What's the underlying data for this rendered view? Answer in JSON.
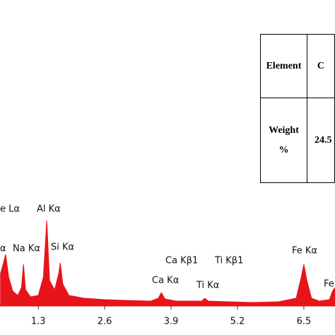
{
  "chart_data": {
    "type": "area",
    "x": [
      0.56,
      0.6,
      0.66,
      0.72,
      0.8,
      0.9,
      0.97,
      1.01,
      1.05,
      1.15,
      1.3,
      1.4,
      1.466,
      1.52,
      1.62,
      1.7,
      1.73,
      1.78,
      1.9,
      2.2,
      2.6,
      3.0,
      3.5,
      3.65,
      3.71,
      3.78,
      4.0,
      4.5,
      4.56,
      4.63,
      5.0,
      5.5,
      6.0,
      6.35,
      6.45,
      6.5,
      6.56,
      6.65,
      6.8,
      7.0,
      7.06,
      7.11
    ],
    "values": [
      45,
      55,
      72,
      40,
      20,
      14,
      25,
      58,
      22,
      12,
      14,
      40,
      120,
      35,
      22,
      45,
      60,
      30,
      14,
      10,
      8,
      7,
      6,
      10,
      18,
      9,
      6,
      6,
      10,
      6,
      5,
      4,
      5,
      10,
      40,
      58,
      35,
      10,
      6,
      8,
      20,
      25
    ],
    "color": "#e8141b",
    "xlim": [
      0.55,
      7.11
    ],
    "ylim": [
      0,
      432
    ],
    "xticks": [
      1.3,
      2.6,
      3.9,
      5.2,
      6.5
    ],
    "annotations": [
      "e Lα",
      "α",
      "Na Kα",
      "Al Kα",
      "Si Kα",
      "Ca Kβ1",
      "Ca Kα",
      "Ti Kβ1",
      "Ti Kα",
      "Fe Kα",
      "Fe"
    ],
    "table": {
      "rows": [
        [
          "Element",
          "C"
        ],
        [
          "Weight %",
          "24.5"
        ]
      ]
    }
  }
}
